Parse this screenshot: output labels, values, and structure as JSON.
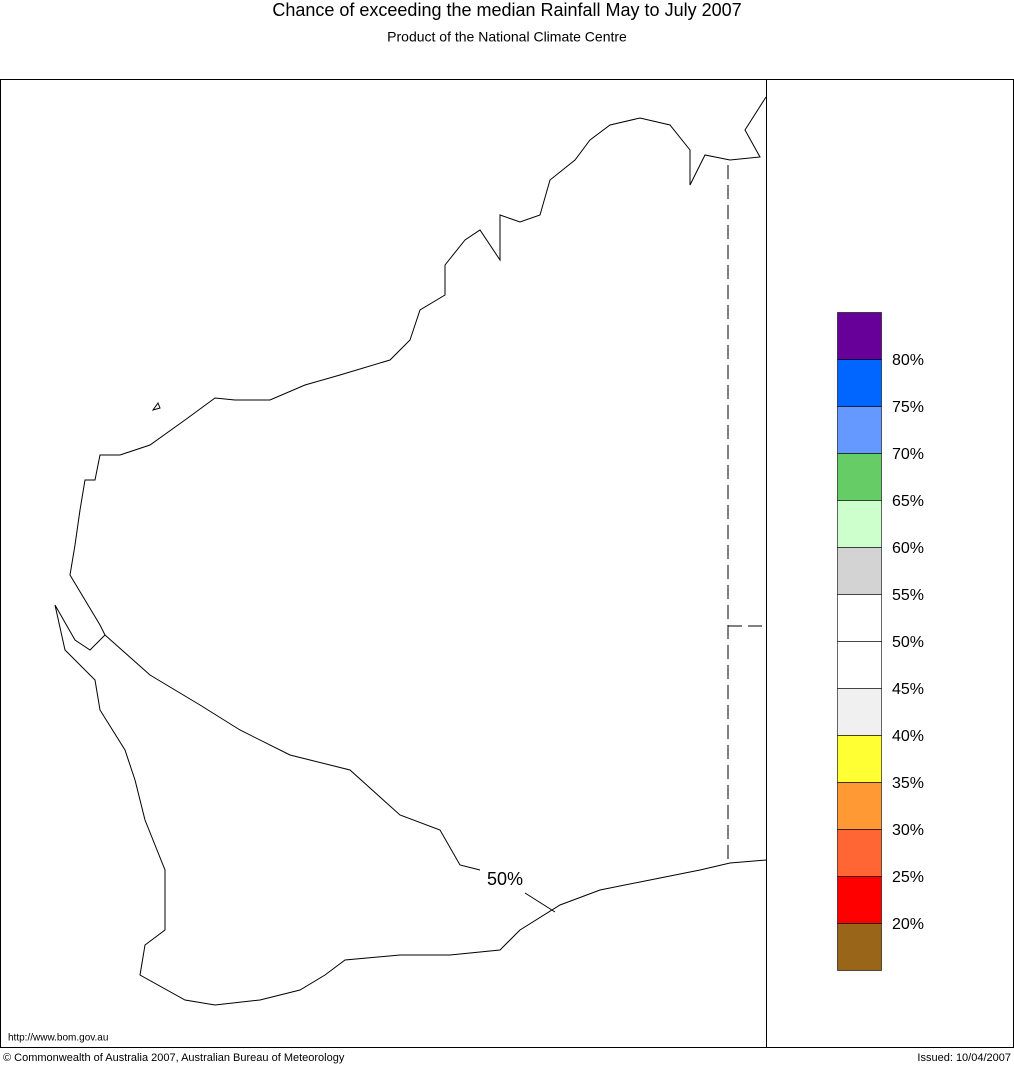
{
  "header": {
    "title": "Chance of exceeding the median Rainfall May to July 2007",
    "subtitle": "Product of the National Climate Centre"
  },
  "map": {
    "contour_label": "50%"
  },
  "legend": {
    "colors": [
      "#660099",
      "#0066ff",
      "#6699ff",
      "#66cc66",
      "#ccffcc",
      "#d3d3d3",
      "#ffffff",
      "#ffffff",
      "#f0f0f0",
      "#ffff33",
      "#ff9933",
      "#ff6633",
      "#ff0000",
      "#996619"
    ],
    "labels": [
      "80%",
      "75%",
      "70%",
      "65%",
      "60%",
      "55%",
      "50%",
      "45%",
      "40%",
      "35%",
      "30%",
      "25%",
      "20%"
    ]
  },
  "footer": {
    "url": "http://www.bom.gov.au",
    "copyright": "© Commonwealth of Australia 2007, Australian Bureau of Meteorology",
    "issued": "Issued: 10/04/2007"
  }
}
